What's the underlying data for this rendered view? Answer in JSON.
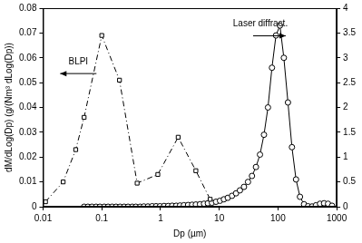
{
  "chart_data": {
    "type": "line",
    "x_label": "Dp (µm)",
    "y_label": "dM/dLog(Dp) (g/(Nm³ dLog(Dp))",
    "log": "x",
    "grid": false,
    "xlim": [
      0.01,
      1000
    ],
    "xticks": [
      0.01,
      0.1,
      1,
      10,
      100,
      1000
    ],
    "ylim": [
      0,
      0.08
    ],
    "yticks": [
      0,
      0.01,
      0.02,
      0.03,
      0.04,
      0.05,
      0.06,
      0.07,
      0.08
    ],
    "y2lim": [
      0,
      4
    ],
    "y2ticks": [
      0,
      0.5,
      1,
      1.5,
      2,
      2.5,
      3,
      3.5,
      4
    ],
    "series": [
      {
        "name": "BLPI",
        "color": "#000000",
        "marker": "square",
        "line_style": "dashdot",
        "axis": "y",
        "x": [
          0.011,
          0.022,
          0.036,
          0.05,
          0.1,
          0.2,
          0.4,
          0.9,
          2,
          4,
          7
        ],
        "values": [
          0.002,
          0.01,
          0.023,
          0.036,
          0.069,
          0.051,
          0.0095,
          0.013,
          0.028,
          0.0145,
          0.003
        ]
      },
      {
        "name": "Laser diffract.",
        "color": "#000000",
        "marker": "circle",
        "line_style": "solid",
        "axis": "y2",
        "x": [
          0.05,
          0.058,
          0.068,
          0.08,
          0.093,
          0.11,
          0.128,
          0.15,
          0.175,
          0.205,
          0.24,
          0.28,
          0.33,
          0.38,
          0.45,
          0.52,
          0.61,
          0.72,
          0.84,
          0.98,
          1.15,
          1.35,
          1.58,
          1.85,
          2.15,
          2.5,
          2.95,
          3.45,
          4.0,
          4.7,
          5.5,
          6.4,
          7.5,
          8.8,
          10.3,
          12,
          14,
          16.5,
          19.3,
          22.5,
          26.4,
          30.9,
          36.1,
          42.2,
          49.4,
          57.8,
          67.6,
          79,
          92.5,
          108,
          126,
          148,
          173,
          203,
          237,
          278,
          325,
          380,
          445,
          520,
          609,
          712,
          833
        ],
        "values": [
          0,
          0,
          0,
          0,
          0,
          0,
          0,
          0,
          0,
          0,
          0,
          0,
          0,
          0,
          0,
          0.005,
          0.005,
          0.01,
          0.01,
          0.01,
          0.015,
          0.015,
          0.02,
          0.02,
          0.025,
          0.03,
          0.035,
          0.04,
          0.045,
          0.05,
          0.06,
          0.07,
          0.08,
          0.1,
          0.12,
          0.15,
          0.18,
          0.22,
          0.27,
          0.33,
          0.4,
          0.5,
          0.62,
          0.8,
          1.05,
          1.45,
          2.0,
          2.8,
          3.45,
          3.65,
          3.0,
          2.1,
          1.2,
          0.55,
          0.2,
          0.05,
          0.01,
          0.005,
          0.03,
          0.06,
          0.07,
          0.06,
          0.02
        ]
      }
    ]
  }
}
